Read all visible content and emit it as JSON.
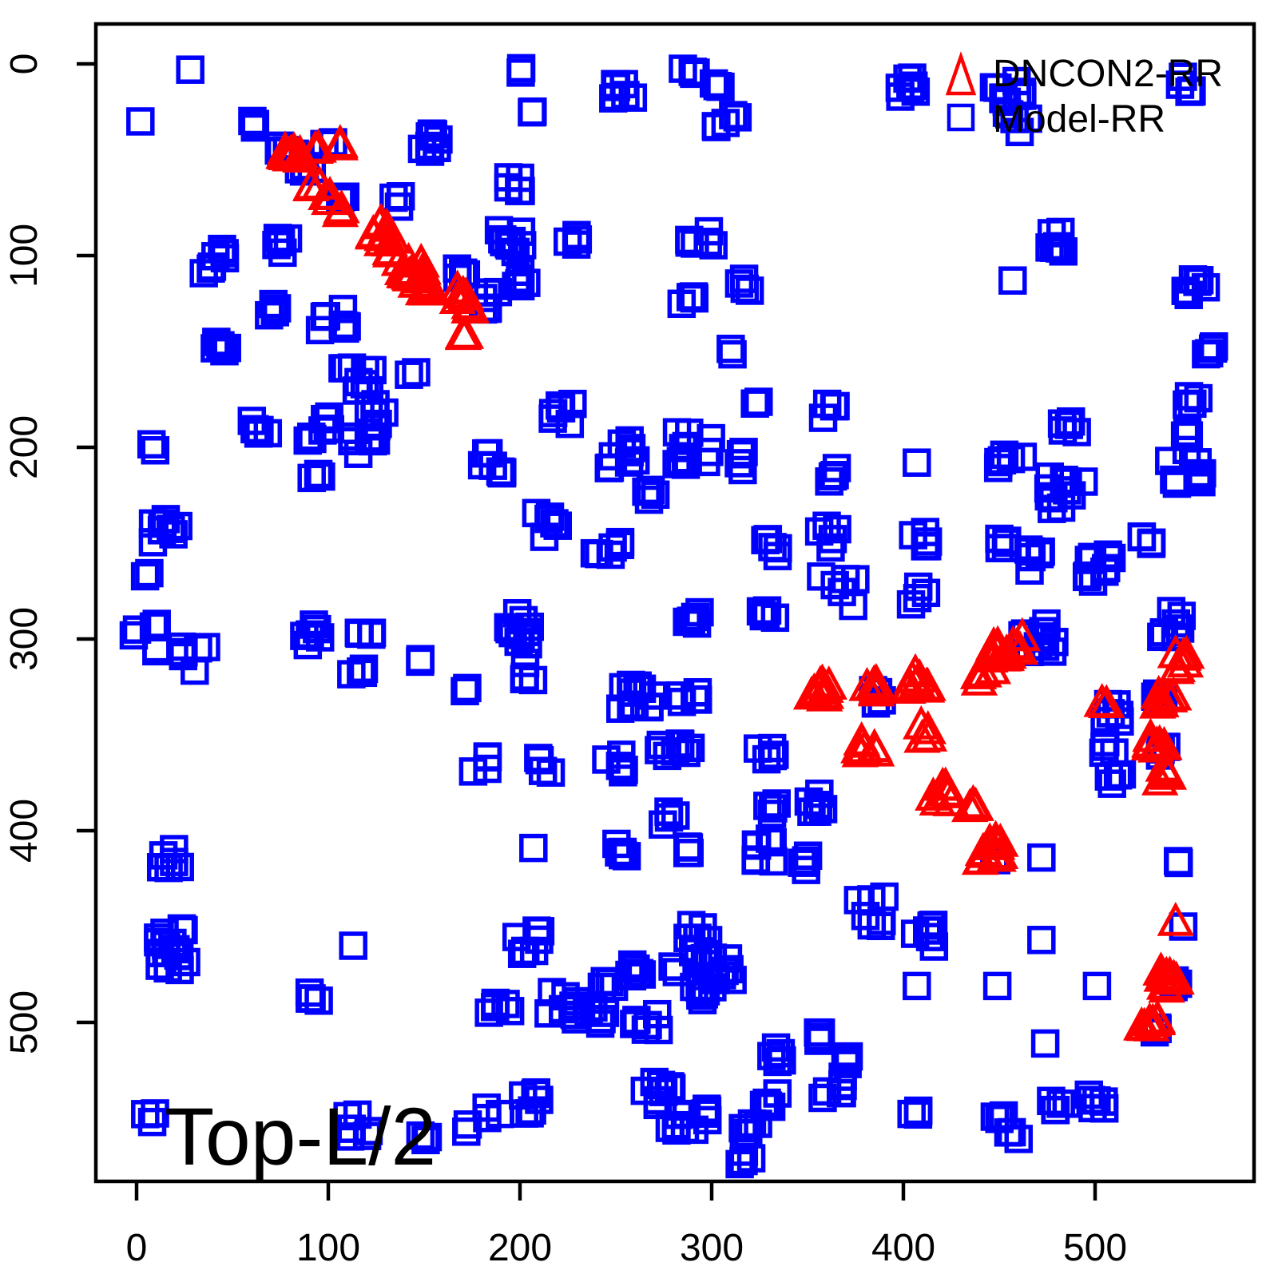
{
  "annotation": {
    "text": "Top-L/2"
  },
  "legend": {
    "items": [
      {
        "label": "DNCON2-RR",
        "marker": "triangle",
        "color": "#FF0000"
      },
      {
        "label": "Model-RR",
        "marker": "square",
        "color": "#0000FF"
      }
    ]
  },
  "colors": {
    "model_rr": "#0000FF",
    "dncon2_rr": "#FF0000",
    "axis": "#000000",
    "background": "#FFFFFF"
  },
  "chart_data": {
    "type": "scatter",
    "title": "",
    "xlabel": "",
    "ylabel": "",
    "annotation": "Top-L/2",
    "x_ticks": [
      0,
      100,
      200,
      300,
      400,
      500
    ],
    "y_ticks": [
      0,
      100,
      200,
      300,
      400,
      500
    ],
    "x_tick_labels": [
      "0",
      "100",
      "200",
      "300",
      "400",
      "500"
    ],
    "y_tick_labels": [
      "0",
      "100",
      "200",
      "300",
      "400",
      "500"
    ],
    "xlim": [
      -21,
      583
    ],
    "ylim": [
      583,
      -21
    ],
    "y_axis_inverted": true,
    "grid": false,
    "legend_position": "top-right",
    "cluster_format": "[x_center, y_center, point_count, jitter_spread] in residue-index units; each cluster is a group of overlapping markers",
    "series": [
      {
        "name": "Model-RR",
        "marker": "square",
        "color": "#0000FF",
        "clusters": [
          [
            28,
            3,
            1,
            0
          ],
          [
            2,
            30,
            1,
            0
          ],
          [
            78,
            46,
            5,
            5
          ],
          [
            88,
            56,
            4,
            4
          ],
          [
            63,
            31,
            3,
            3
          ],
          [
            100,
            40,
            2,
            3
          ],
          [
            108,
            70,
            3,
            3
          ],
          [
            152,
            42,
            8,
            6
          ],
          [
            197,
            63,
            5,
            6
          ],
          [
            135,
            72,
            3,
            3
          ],
          [
            196,
            92,
            9,
            7
          ],
          [
            227,
            92,
            4,
            4
          ],
          [
            201,
            112,
            6,
            5
          ],
          [
            168,
            109,
            4,
            4
          ],
          [
            182,
            124,
            6,
            8
          ],
          [
            74,
            95,
            5,
            6
          ],
          [
            44,
            100,
            4,
            4
          ],
          [
            38,
            108,
            3,
            3
          ],
          [
            102,
            135,
            9,
            8
          ],
          [
            72,
            130,
            4,
            5
          ],
          [
            110,
            157,
            3,
            3
          ],
          [
            253,
            12,
            7,
            6
          ],
          [
            202,
            4,
            2,
            2
          ],
          [
            205,
            25,
            2,
            2
          ],
          [
            44,
            149,
            5,
            5
          ],
          [
            120,
            165,
            6,
            6
          ],
          [
            144,
            162,
            2,
            2
          ],
          [
            126,
            184,
            6,
            7
          ],
          [
            94,
            190,
            8,
            7
          ],
          [
            65,
            191,
            5,
            6
          ],
          [
            120,
            196,
            6,
            8
          ],
          [
            8,
            201,
            2,
            3
          ],
          [
            94,
            215,
            3,
            3
          ],
          [
            182,
            206,
            4,
            4
          ],
          [
            189,
            214,
            4,
            4
          ],
          [
            220,
            183,
            6,
            8
          ],
          [
            253,
            204,
            9,
            8
          ],
          [
            270,
            224,
            4,
            5
          ],
          [
            215,
            240,
            6,
            7
          ],
          [
            245,
            256,
            6,
            8
          ],
          [
            14,
            245,
            8,
            8
          ],
          [
            5,
            266,
            2,
            2
          ],
          [
            288,
            4,
            4,
            4
          ],
          [
            304,
            10,
            3,
            3
          ],
          [
            308,
            30,
            5,
            6
          ],
          [
            404,
            12,
            7,
            6
          ],
          [
            455,
            12,
            9,
            8
          ],
          [
            460,
            30,
            5,
            6
          ],
          [
            546,
            10,
            5,
            5
          ],
          [
            480,
            92,
            7,
            6
          ],
          [
            295,
            92,
            6,
            7
          ],
          [
            457,
            113,
            1,
            0
          ],
          [
            553,
            118,
            6,
            6
          ],
          [
            288,
            122,
            4,
            4
          ],
          [
            316,
            115,
            4,
            4
          ],
          [
            310,
            150,
            2,
            2
          ],
          [
            558,
            150,
            4,
            4
          ],
          [
            551,
            176,
            4,
            4
          ],
          [
            545,
            190,
            3,
            4
          ],
          [
            323,
            176,
            2,
            2
          ],
          [
            291,
            200,
            11,
            10
          ],
          [
            362,
            181,
            4,
            5
          ],
          [
            316,
            207,
            4,
            5
          ],
          [
            364,
            214,
            4,
            4
          ],
          [
            407,
            208,
            1,
            0
          ],
          [
            456,
            209,
            6,
            7
          ],
          [
            485,
            223,
            11,
            10
          ],
          [
            486,
            189,
            5,
            5
          ],
          [
            547,
            210,
            9,
            9
          ],
          [
            526,
            247,
            4,
            4
          ],
          [
            503,
            263,
            9,
            8
          ],
          [
            471,
            260,
            6,
            7
          ],
          [
            409,
            249,
            5,
            5
          ],
          [
            450,
            249,
            5,
            5
          ],
          [
            332,
            251,
            5,
            6
          ],
          [
            361,
            247,
            5,
            7
          ],
          [
            366,
            275,
            6,
            9
          ],
          [
            407,
            277,
            4,
            5
          ],
          [
            6,
            300,
            6,
            8
          ],
          [
            30,
            310,
            6,
            7
          ],
          [
            92,
            298,
            6,
            6
          ],
          [
            119,
            294,
            4,
            4
          ],
          [
            115,
            317,
            4,
            4
          ],
          [
            149,
            311,
            2,
            2
          ],
          [
            173,
            326,
            2,
            2
          ],
          [
            200,
            295,
            10,
            10
          ],
          [
            205,
            317,
            4,
            5
          ],
          [
            262,
            330,
            11,
            10
          ],
          [
            180,
            365,
            4,
            5
          ],
          [
            213,
            366,
            4,
            5
          ],
          [
            249,
            364,
            5,
            6
          ],
          [
            277,
            360,
            4,
            5
          ],
          [
            278,
            395,
            4,
            5
          ],
          [
            207,
            409,
            1,
            0
          ],
          [
            254,
            410,
            5,
            5
          ],
          [
            16,
            413,
            6,
            7
          ],
          [
            20,
            462,
            16,
            12
          ],
          [
            113,
            460,
            1,
            0
          ],
          [
            92,
            485,
            4,
            4
          ],
          [
            7,
            548,
            3,
            4
          ],
          [
            116,
            554,
            6,
            6
          ],
          [
            151,
            561,
            3,
            3
          ],
          [
            172,
            555,
            2,
            2
          ],
          [
            186,
            546,
            3,
            4
          ],
          [
            209,
            543,
            7,
            8
          ],
          [
            246,
            482,
            4,
            4
          ],
          [
            240,
            497,
            5,
            5
          ],
          [
            258,
            472,
            6,
            6
          ],
          [
            266,
            502,
            6,
            7
          ],
          [
            272,
            536,
            8,
            8
          ],
          [
            282,
            552,
            5,
            5
          ],
          [
            280,
            472,
            2,
            2
          ],
          [
            205,
            458,
            7,
            7
          ],
          [
            189,
            490,
            5,
            6
          ],
          [
            222,
            491,
            9,
            9
          ],
          [
            336,
            516,
            5,
            5
          ],
          [
            353,
            507,
            4,
            4
          ],
          [
            373,
            519,
            4,
            4
          ],
          [
            362,
            535,
            7,
            7
          ],
          [
            330,
            540,
            5,
            5
          ],
          [
            292,
            289,
            5,
            5
          ],
          [
            330,
            288,
            5,
            5
          ],
          [
            470,
            299,
            11,
            10
          ],
          [
            540,
            292,
            7,
            7
          ],
          [
            288,
            328,
            5,
            5
          ],
          [
            286,
            356,
            4,
            4
          ],
          [
            329,
            359,
            5,
            5
          ],
          [
            509,
            338,
            6,
            6
          ],
          [
            507,
            356,
            4,
            4
          ],
          [
            510,
            373,
            4,
            4
          ],
          [
            331,
            388,
            4,
            5
          ],
          [
            356,
            385,
            6,
            6
          ],
          [
            327,
            410,
            7,
            7
          ],
          [
            351,
            417,
            4,
            4
          ],
          [
            286,
            408,
            4,
            4
          ],
          [
            383,
            442,
            7,
            8
          ],
          [
            411,
            455,
            6,
            6
          ],
          [
            472,
            414,
            1,
            0
          ],
          [
            472,
            457,
            1,
            0
          ],
          [
            541,
            414,
            3,
            3
          ],
          [
            407,
            481,
            1,
            0
          ],
          [
            449,
            481,
            1,
            0
          ],
          [
            501,
            481,
            1,
            0
          ],
          [
            474,
            511,
            1,
            0
          ],
          [
            295,
            458,
            10,
            9
          ],
          [
            297,
            484,
            8,
            7
          ],
          [
            305,
            472,
            6,
            6
          ],
          [
            320,
            554,
            5,
            5
          ],
          [
            318,
            570,
            4,
            4
          ],
          [
            407,
            546,
            3,
            3
          ],
          [
            454,
            554,
            6,
            7
          ],
          [
            481,
            543,
            5,
            5
          ],
          [
            500,
            540,
            6,
            6
          ],
          [
            292,
            549,
            6,
            7
          ],
          [
            385,
            330,
            4,
            4
          ],
          [
            532,
            332,
            4,
            4
          ],
          [
            535,
            358,
            3,
            3
          ],
          [
            447,
            413,
            3,
            3
          ],
          [
            541,
            480,
            3,
            3
          ],
          [
            530,
            505,
            3,
            3
          ],
          [
            546,
            450,
            1,
            0
          ]
        ]
      },
      {
        "name": "DNCON2-RR",
        "marker": "triangle",
        "color": "#FF0000",
        "clusters": [
          [
            81,
            49,
            10,
            5
          ],
          [
            95,
            46,
            2,
            2
          ],
          [
            107,
            42,
            2,
            2
          ],
          [
            93,
            63,
            3,
            3
          ],
          [
            100,
            70,
            3,
            3
          ],
          [
            106,
            78,
            2,
            2
          ],
          [
            126,
            88,
            7,
            5
          ],
          [
            130,
            96,
            5,
            4
          ],
          [
            144,
            109,
            14,
            7
          ],
          [
            152,
            116,
            5,
            4
          ],
          [
            168,
            121,
            5,
            4
          ],
          [
            174,
            127,
            4,
            3
          ],
          [
            170,
            143,
            3,
            2
          ],
          [
            357,
            328,
            9,
            5
          ],
          [
            383,
            327,
            6,
            4
          ],
          [
            407,
            324,
            9,
            6
          ],
          [
            381,
            355,
            7,
            5
          ],
          [
            412,
            349,
            4,
            4
          ],
          [
            450,
            309,
            9,
            6
          ],
          [
            460,
            303,
            4,
            4
          ],
          [
            443,
            319,
            4,
            4
          ],
          [
            505,
            335,
            2,
            2
          ],
          [
            543,
            313,
            6,
            5
          ],
          [
            536,
            330,
            7,
            5
          ],
          [
            533,
            356,
            7,
            5
          ],
          [
            536,
            371,
            5,
            4
          ],
          [
            420,
            381,
            7,
            5
          ],
          [
            436,
            389,
            5,
            4
          ],
          [
            445,
            411,
            12,
            6
          ],
          [
            542,
            448,
            1,
            0
          ],
          [
            539,
            478,
            9,
            5
          ],
          [
            528,
            503,
            7,
            5
          ]
        ]
      }
    ]
  }
}
